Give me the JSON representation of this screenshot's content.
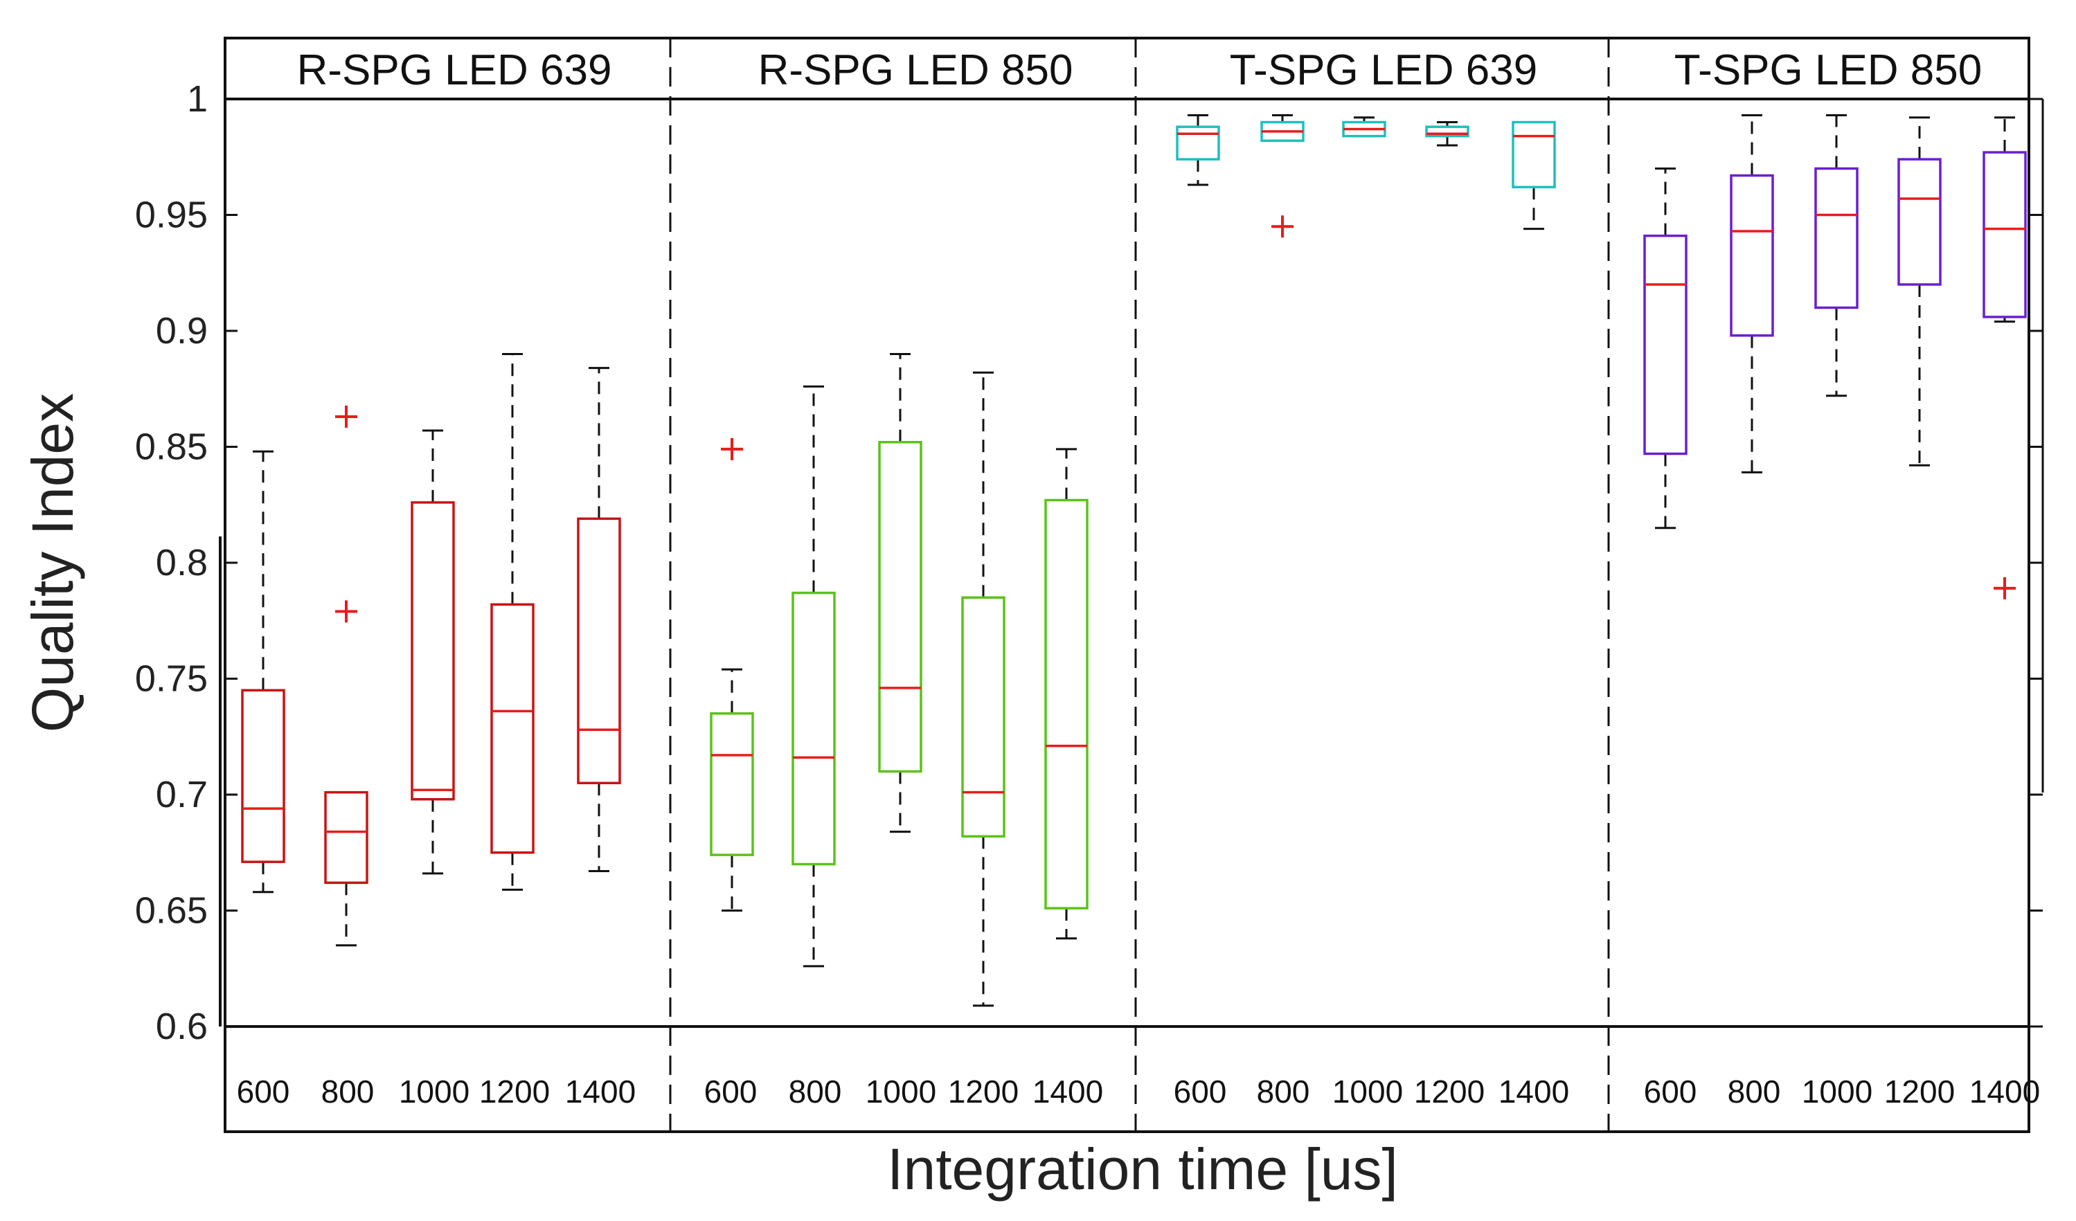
{
  "chart_data": {
    "type": "boxplot",
    "title": "",
    "xlabel": "Integration time [us]",
    "ylabel": "Quality Index",
    "ylim": [
      0.6,
      1.0
    ],
    "yticks": [
      0.6,
      0.65,
      0.7,
      0.75,
      0.8,
      0.85,
      0.9,
      0.95,
      1
    ],
    "ytick_labels": [
      "0.6",
      "0.65",
      "0.7",
      "0.75",
      "0.8",
      "0.85",
      "0.9",
      "0.95",
      "1"
    ],
    "categories": [
      "600",
      "800",
      "1000",
      "1200",
      "1400"
    ],
    "panels": [
      {
        "name": "R-SPG LED 639",
        "color": "#c81414",
        "boxes": [
          {
            "whislo": 0.658,
            "q1": 0.671,
            "med": 0.694,
            "q3": 0.745,
            "whishi": 0.848,
            "fliers": []
          },
          {
            "whislo": 0.635,
            "q1": 0.662,
            "med": 0.684,
            "q3": 0.701,
            "whishi": 0.701,
            "fliers": [
              0.779,
              0.863
            ]
          },
          {
            "whislo": 0.666,
            "q1": 0.698,
            "med": 0.702,
            "q3": 0.826,
            "whishi": 0.857,
            "fliers": []
          },
          {
            "whislo": 0.659,
            "q1": 0.675,
            "med": 0.736,
            "q3": 0.782,
            "whishi": 0.89,
            "fliers": []
          },
          {
            "whislo": 0.667,
            "q1": 0.705,
            "med": 0.728,
            "q3": 0.819,
            "whishi": 0.884,
            "fliers": []
          }
        ]
      },
      {
        "name": "R-SPG LED 850",
        "color": "#5cc21a",
        "boxes": [
          {
            "whislo": 0.65,
            "q1": 0.674,
            "med": 0.717,
            "q3": 0.735,
            "whishi": 0.754,
            "fliers": [
              0.849
            ]
          },
          {
            "whislo": 0.626,
            "q1": 0.67,
            "med": 0.716,
            "q3": 0.787,
            "whishi": 0.876,
            "fliers": []
          },
          {
            "whislo": 0.684,
            "q1": 0.71,
            "med": 0.746,
            "q3": 0.852,
            "whishi": 0.89,
            "fliers": []
          },
          {
            "whislo": 0.609,
            "q1": 0.682,
            "med": 0.701,
            "q3": 0.785,
            "whishi": 0.882,
            "fliers": []
          },
          {
            "whislo": 0.638,
            "q1": 0.651,
            "med": 0.721,
            "q3": 0.827,
            "whishi": 0.849,
            "fliers": []
          }
        ]
      },
      {
        "name": "T-SPG LED 639",
        "color": "#1fbfbf",
        "boxes": [
          {
            "whislo": 0.963,
            "q1": 0.974,
            "med": 0.985,
            "q3": 0.988,
            "whishi": 0.993,
            "fliers": []
          },
          {
            "whislo": 0.982,
            "q1": 0.982,
            "med": 0.986,
            "q3": 0.99,
            "whishi": 0.993,
            "fliers": [
              0.945
            ]
          },
          {
            "whislo": 0.984,
            "q1": 0.984,
            "med": 0.987,
            "q3": 0.99,
            "whishi": 0.992,
            "fliers": []
          },
          {
            "whislo": 0.98,
            "q1": 0.984,
            "med": 0.985,
            "q3": 0.988,
            "whishi": 0.99,
            "fliers": []
          },
          {
            "whislo": 0.944,
            "q1": 0.962,
            "med": 0.984,
            "q3": 0.99,
            "whishi": 0.99,
            "fliers": []
          }
        ]
      },
      {
        "name": "T-SPG LED 850",
        "color": "#6a1fd1",
        "boxes": [
          {
            "whislo": 0.815,
            "q1": 0.847,
            "med": 0.92,
            "q3": 0.941,
            "whishi": 0.97,
            "fliers": []
          },
          {
            "whislo": 0.839,
            "q1": 0.898,
            "med": 0.943,
            "q3": 0.967,
            "whishi": 0.993,
            "fliers": []
          },
          {
            "whislo": 0.872,
            "q1": 0.91,
            "med": 0.95,
            "q3": 0.97,
            "whishi": 0.993,
            "fliers": []
          },
          {
            "whislo": 0.842,
            "q1": 0.92,
            "med": 0.957,
            "q3": 0.974,
            "whishi": 0.992,
            "fliers": []
          },
          {
            "whislo": 0.904,
            "q1": 0.906,
            "med": 0.944,
            "q3": 0.977,
            "whishi": 0.992,
            "fliers": [
              0.789
            ]
          }
        ]
      }
    ],
    "median_color": "#e81c1c",
    "flier_color": "#e81c1c",
    "whisker_color": "#111111",
    "grid": false,
    "legend": "none"
  }
}
